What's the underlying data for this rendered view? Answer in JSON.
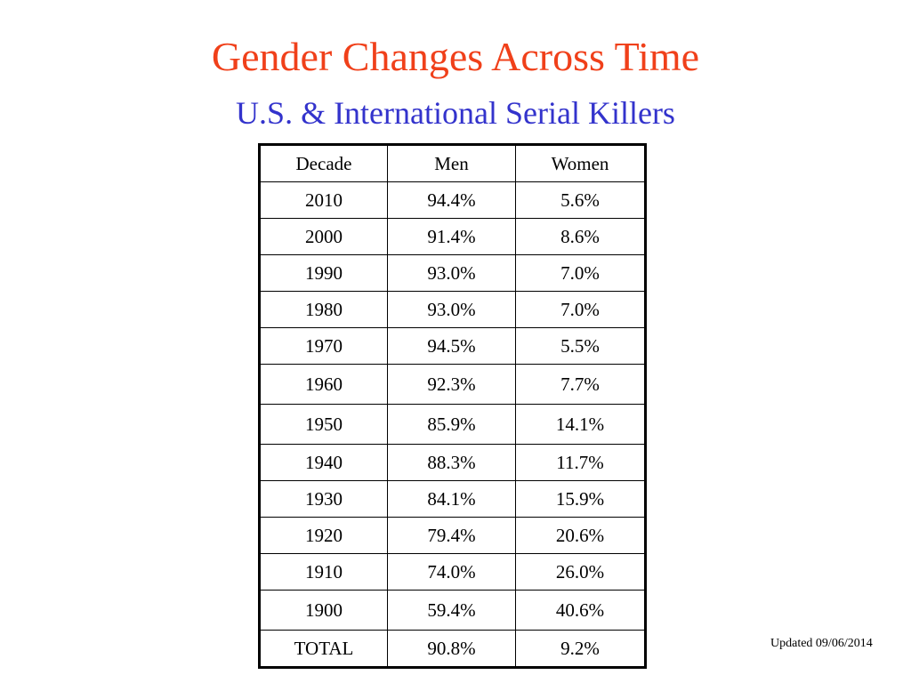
{
  "title": "Gender Changes Across Time",
  "subtitle": "U.S. & International Serial Killers",
  "table": {
    "headers": [
      "Decade",
      "Men",
      "Women"
    ],
    "rows": [
      [
        "2010",
        "94.4%",
        "5.6%"
      ],
      [
        "2000",
        "91.4%",
        "8.6%"
      ],
      [
        "1990",
        "93.0%",
        "7.0%"
      ],
      [
        "1980",
        "93.0%",
        "7.0%"
      ],
      [
        "1970",
        "94.5%",
        "5.5%"
      ],
      [
        "1960",
        "92.3%",
        "7.7%"
      ],
      [
        "1950",
        "85.9%",
        "14.1%"
      ],
      [
        "1940",
        "88.3%",
        "11.7%"
      ],
      [
        "1930",
        "84.1%",
        "15.9%"
      ],
      [
        "1920",
        "79.4%",
        "20.6%"
      ],
      [
        "1910",
        "74.0%",
        "26.0%"
      ],
      [
        "1900",
        "59.4%",
        "40.6%"
      ],
      [
        "TOTAL",
        "90.8%",
        "9.2%"
      ]
    ]
  },
  "footer": {
    "updated": "Updated 09/06/2014"
  },
  "colors": {
    "title": "#f0401a",
    "subtitle": "#3333cc",
    "text": "#000000",
    "background": "#ffffff"
  }
}
